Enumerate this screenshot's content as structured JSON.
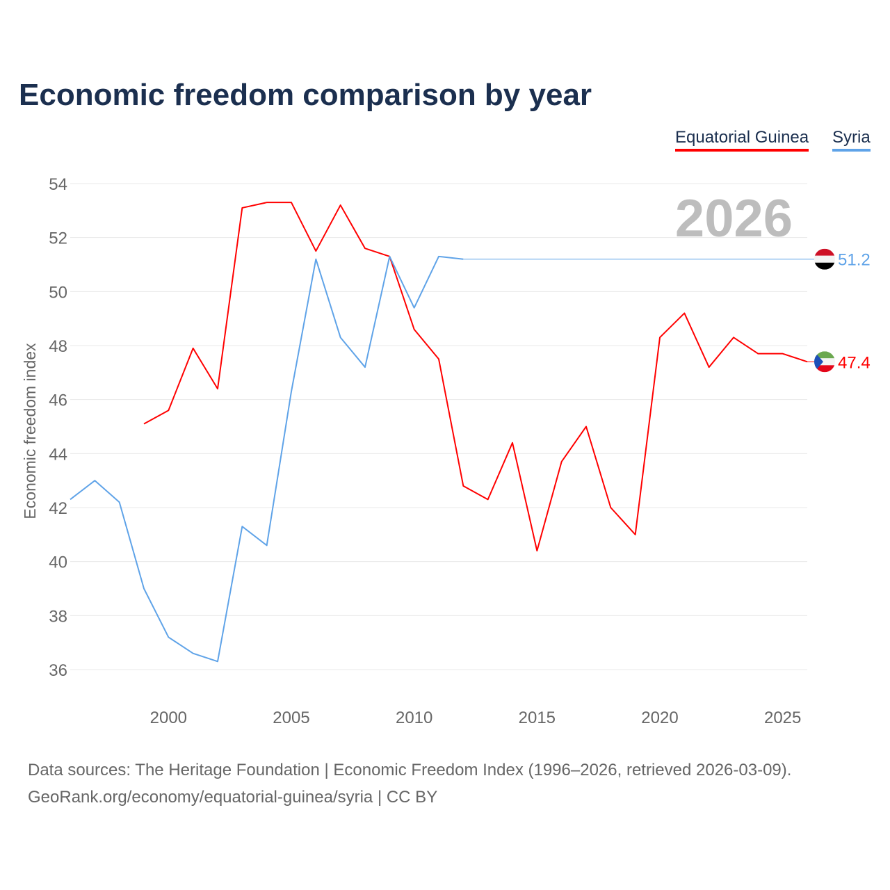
{
  "title": "Economic freedom comparison by year",
  "legend": [
    {
      "name": "Equatorial Guinea",
      "color": "#ff0000"
    },
    {
      "name": "Syria",
      "color": "#5fa3e8"
    }
  ],
  "source_line1": "Data sources: The Heritage Foundation | Economic Freedom Index (1996–2026, retrieved 2026-03-09).",
  "source_line2": "GeoRank.org/economy/equatorial-guinea/syria | CC BY",
  "chart_data": {
    "type": "line",
    "ylabel": "Economic freedom index",
    "year_watermark": "2026",
    "ylim": [
      36,
      54
    ],
    "yticks": [
      36,
      38,
      40,
      42,
      44,
      46,
      48,
      50,
      52,
      54
    ],
    "xlim": [
      1996,
      2026
    ],
    "xticks": [
      2000,
      2005,
      2010,
      2015,
      2020,
      2025
    ],
    "series": [
      {
        "name": "Equatorial Guinea",
        "color": "#ff0000",
        "end_label": "47.4",
        "x": [
          1999,
          2000,
          2001,
          2002,
          2003,
          2004,
          2005,
          2006,
          2007,
          2008,
          2009,
          2010,
          2011,
          2012,
          2013,
          2014,
          2015,
          2016,
          2017,
          2018,
          2019,
          2020,
          2021,
          2022,
          2023,
          2024,
          2025,
          2026
        ],
        "y": [
          45.1,
          45.6,
          47.9,
          46.4,
          53.1,
          53.3,
          53.3,
          51.5,
          53.2,
          51.6,
          51.3,
          48.6,
          47.5,
          42.8,
          42.3,
          44.4,
          40.4,
          43.7,
          45.0,
          42.0,
          41.0,
          48.3,
          49.2,
          47.2,
          48.3,
          47.7,
          47.7,
          47.4
        ]
      },
      {
        "name": "Syria",
        "color": "#5fa3e8",
        "end_label": "51.2",
        "x": [
          1996,
          1997,
          1998,
          1999,
          2000,
          2001,
          2002,
          2003,
          2004,
          2005,
          2006,
          2007,
          2008,
          2009,
          2010,
          2011,
          2012
        ],
        "y": [
          42.3,
          43.0,
          42.2,
          39.0,
          37.2,
          36.6,
          36.3,
          41.3,
          40.6,
          46.3,
          51.2,
          48.3,
          47.2,
          51.3,
          49.4,
          51.3,
          51.2
        ]
      }
    ]
  }
}
